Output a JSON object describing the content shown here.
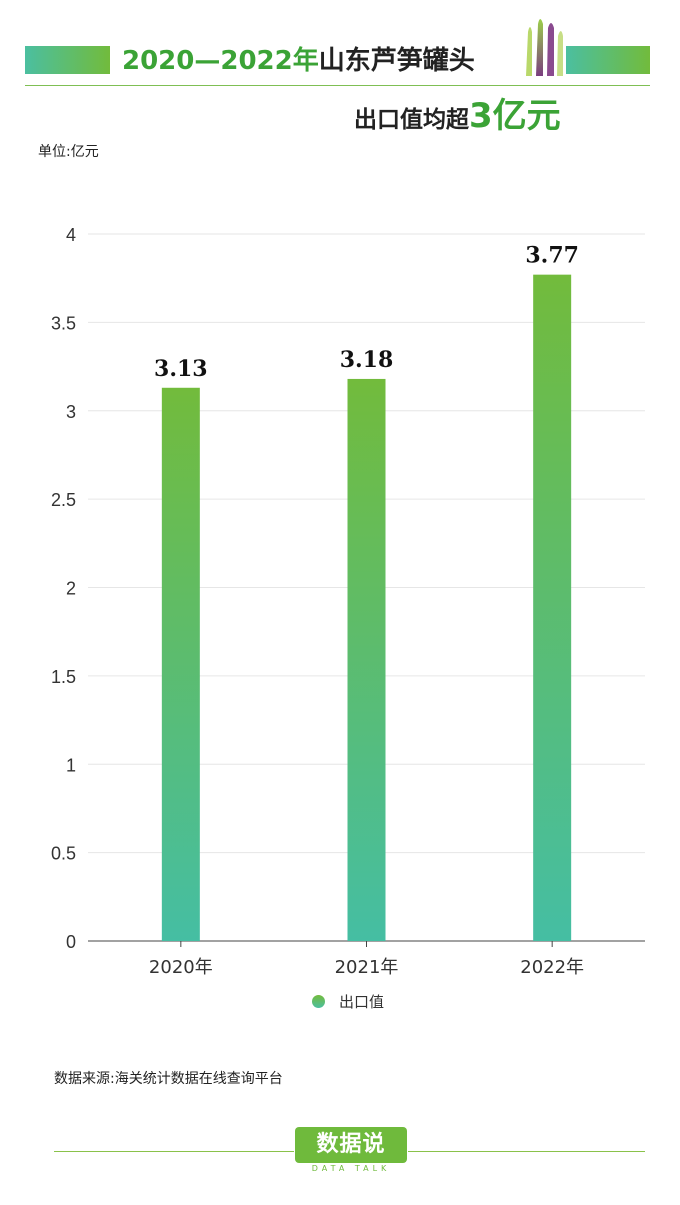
{
  "header": {
    "title_years": "2020—2022年",
    "title_rest": "山东芦笋罐头",
    "subtitle_prefix": "出口值均超",
    "subtitle_highlight": "3亿元"
  },
  "unit_label": "单位:亿元",
  "source": "数据来源:海关统计数据在线查询平台",
  "logo": {
    "name": "数据说",
    "tagline": "DATA TALK"
  },
  "colors": {
    "bar_top": "#72bb3c",
    "bar_bottom": "#45bea3",
    "accent": "#3ba336"
  },
  "chart_data": {
    "type": "bar",
    "categories": [
      "2020年",
      "2021年",
      "2022年"
    ],
    "series": [
      {
        "name": "出口值",
        "values": [
          3.13,
          3.18,
          3.77
        ]
      }
    ],
    "data_labels": [
      "3.13",
      "3.18",
      "3.77"
    ],
    "ylim": [
      0,
      4
    ],
    "yticks": [
      "0",
      "0.5",
      "1",
      "1.5",
      "2",
      "2.5",
      "3",
      "3.5",
      "4"
    ],
    "grid": true,
    "legend": "bottom-center"
  }
}
